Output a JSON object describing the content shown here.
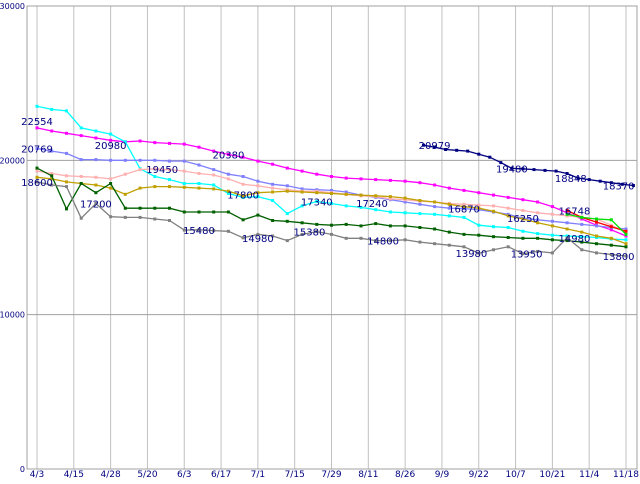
{
  "chart_data": {
    "type": "line",
    "title": "",
    "xlabel": "",
    "ylabel": "",
    "ylim": [
      0,
      30000
    ],
    "yticks": [
      0,
      10000,
      20000,
      30000
    ],
    "grid": true,
    "legend": "none",
    "x_tick_labels": [
      "4/3",
      "4/15",
      "4/28",
      "5/20",
      "6/3",
      "6/17",
      "7/1",
      "7/15",
      "7/29",
      "8/11",
      "8/26",
      "9/9",
      "9/22",
      "10/7",
      "10/21",
      "11/4",
      "11/18"
    ],
    "annotations": [
      {
        "text": "22554",
        "x": 0,
        "y": 22554,
        "color": "#000080"
      },
      {
        "text": "20769",
        "x": 0,
        "y": 20769,
        "color": "#000080"
      },
      {
        "text": "18600",
        "x": 0,
        "y": 18600,
        "color": "#000080"
      },
      {
        "text": "20980",
        "x": 2,
        "y": 20980,
        "color": "#000080"
      },
      {
        "text": "17200",
        "x": 1.6,
        "y": 17200,
        "color": "#000080"
      },
      {
        "text": "19450",
        "x": 3.4,
        "y": 19450,
        "color": "#000080"
      },
      {
        "text": "15480",
        "x": 4.4,
        "y": 15480,
        "color": "#000080"
      },
      {
        "text": "20380",
        "x": 5.2,
        "y": 20380,
        "color": "#000080"
      },
      {
        "text": "17800",
        "x": 5.6,
        "y": 17800,
        "color": "#000080"
      },
      {
        "text": "14980",
        "x": 6.0,
        "y": 14980,
        "color": "#000080"
      },
      {
        "text": "17340",
        "x": 7.6,
        "y": 17340,
        "color": "#000080"
      },
      {
        "text": "15380",
        "x": 7.4,
        "y": 15380,
        "color": "#000080"
      },
      {
        "text": "17240",
        "x": 9.1,
        "y": 17240,
        "color": "#000080"
      },
      {
        "text": "14800",
        "x": 9.4,
        "y": 14800,
        "color": "#000080"
      },
      {
        "text": "20979",
        "x": 10.8,
        "y": 20979,
        "color": "#000080"
      },
      {
        "text": "16870",
        "x": 11.6,
        "y": 16870,
        "color": "#000080"
      },
      {
        "text": "13980",
        "x": 11.8,
        "y": 13980,
        "color": "#000080"
      },
      {
        "text": "19480",
        "x": 12.9,
        "y": 19480,
        "color": "#000080"
      },
      {
        "text": "16250",
        "x": 13.2,
        "y": 16250,
        "color": "#000080"
      },
      {
        "text": "13950",
        "x": 13.3,
        "y": 13950,
        "color": "#000080"
      },
      {
        "text": "18848",
        "x": 14.5,
        "y": 18848,
        "color": "#000080"
      },
      {
        "text": "16748",
        "x": 14.6,
        "y": 16748,
        "color": "#000080"
      },
      {
        "text": "14980",
        "x": 14.6,
        "y": 14980,
        "color": "#000080"
      },
      {
        "text": "18370",
        "x": 15.8,
        "y": 18370,
        "color": "#000080"
      },
      {
        "text": "13800",
        "x": 15.8,
        "y": 13800,
        "color": "#000080"
      }
    ],
    "series": [
      {
        "color": "#000080",
        "x": [
          10.5,
          10.8,
          11.1,
          11.4,
          11.7,
          12.0,
          12.3,
          12.6,
          12.9,
          13.2,
          13.5,
          13.8,
          14.1,
          14.4,
          14.7,
          15.0,
          15.3,
          15.6,
          15.9,
          16.2
        ],
        "values": [
          20979,
          20850,
          20700,
          20650,
          20600,
          20400,
          20200,
          19850,
          19480,
          19450,
          19400,
          19350,
          19300,
          19150,
          18848,
          18750,
          18650,
          18550,
          18450,
          18370
        ]
      },
      {
        "color": "#ff00ff",
        "x": [
          0,
          0.4,
          0.8,
          1.2,
          1.6,
          2.0,
          2.4,
          2.8,
          3.2,
          3.6,
          4.0,
          4.4,
          4.8,
          5.2,
          5.6,
          6.0,
          6.4,
          6.8,
          7.2,
          7.6,
          8.0,
          8.4,
          8.8,
          9.2,
          9.6,
          10.0,
          10.4,
          10.8,
          11.2,
          11.6,
          12.0,
          12.4,
          12.8,
          13.2,
          13.6,
          14.0,
          14.4,
          14.8,
          15.2,
          15.6,
          16.0
        ],
        "values": [
          22100,
          21900,
          21750,
          21600,
          21450,
          21300,
          21200,
          21250,
          21150,
          21100,
          21050,
          20850,
          20600,
          20380,
          20200,
          19950,
          19750,
          19500,
          19300,
          19100,
          18950,
          18850,
          18800,
          18750,
          18700,
          18650,
          18550,
          18400,
          18200,
          18050,
          17900,
          17750,
          17600,
          17450,
          17300,
          17000,
          16600,
          16200,
          15800,
          15500,
          15100
        ]
      },
      {
        "color": "#00ffff",
        "x": [
          0,
          0.4,
          0.8,
          1.2,
          1.6,
          2.0,
          2.4,
          2.8,
          3.2,
          3.6,
          4.0,
          4.4,
          4.8,
          5.2,
          5.6,
          6.0,
          6.4,
          6.8,
          7.2,
          7.6,
          8.0,
          8.4,
          8.8,
          9.2,
          9.6,
          10.0,
          10.4,
          10.8,
          11.2,
          11.6,
          12.0,
          12.4,
          12.8,
          13.2,
          13.6,
          14.0,
          14.4,
          14.8,
          15.2,
          15.6,
          16.0
        ],
        "values": [
          23500,
          23300,
          23200,
          22100,
          21900,
          21700,
          21200,
          19450,
          18950,
          18750,
          18500,
          18500,
          18400,
          17850,
          17600,
          17650,
          17400,
          16550,
          17050,
          17340,
          17200,
          17050,
          16950,
          16800,
          16650,
          16600,
          16550,
          16500,
          16400,
          16300,
          15800,
          15700,
          15650,
          15400,
          15250,
          15150,
          15100,
          15050,
          15000,
          14900,
          14850
        ]
      },
      {
        "color": "#8080ff",
        "x": [
          0,
          0.4,
          0.8,
          1.2,
          1.6,
          2.0,
          2.4,
          2.8,
          3.2,
          3.6,
          4.0,
          4.4,
          4.8,
          5.2,
          5.6,
          6.0,
          6.4,
          6.8,
          7.2,
          7.6,
          8.0,
          8.4,
          8.8,
          9.2,
          9.6,
          10.0,
          10.4,
          10.8,
          11.2,
          11.6,
          12.0,
          12.4,
          12.8,
          13.2,
          13.6,
          14.0,
          14.4,
          14.8,
          15.2,
          15.6,
          16.0
        ],
        "values": [
          20769,
          20600,
          20450,
          20050,
          20050,
          20000,
          20000,
          20000,
          20000,
          19950,
          19950,
          19700,
          19400,
          19100,
          18950,
          18650,
          18450,
          18350,
          18150,
          18100,
          18050,
          17950,
          17750,
          17600,
          17450,
          17300,
          17150,
          17000,
          16900,
          16870,
          16800,
          16650,
          16500,
          16250,
          16150,
          16050,
          15950,
          15850,
          15750,
          15650,
          15550
        ]
      },
      {
        "color": "#ffb0b0",
        "x": [
          0,
          0.4,
          0.8,
          1.2,
          1.6,
          2.0,
          2.4,
          2.8,
          3.2,
          3.6,
          4.0,
          4.4,
          4.8,
          5.2,
          5.6,
          6.0,
          6.4,
          6.8,
          7.2,
          7.6,
          8.0,
          8.4,
          8.8,
          9.2,
          9.6,
          10.0,
          10.4,
          10.8,
          11.2,
          11.6,
          12.0,
          12.4,
          12.8,
          13.2,
          13.6,
          14.0,
          14.4,
          14.8,
          15.2,
          15.6,
          16.0
        ],
        "values": [
          19300,
          19150,
          19000,
          18950,
          18900,
          18800,
          19100,
          19400,
          19450,
          19400,
          19300,
          19150,
          19050,
          18800,
          18450,
          18350,
          18200,
          18100,
          18000,
          18000,
          17900,
          17800,
          17700,
          17650,
          17500,
          17450,
          17350,
          17300,
          17200,
          17150,
          17100,
          17050,
          16900,
          16750,
          16600,
          16500,
          16400,
          16300,
          16200,
          15800,
          15350
        ]
      },
      {
        "color": "#c0a000",
        "x": [
          0,
          0.4,
          0.8,
          1.2,
          1.6,
          2.0,
          2.4,
          2.8,
          3.2,
          3.6,
          4.0,
          4.4,
          4.8,
          5.2,
          5.6,
          6.0,
          6.4,
          6.8,
          7.2,
          7.6,
          8.0,
          8.4,
          8.8,
          9.2,
          9.6,
          10.0,
          10.4,
          10.8,
          11.2,
          11.6,
          12.0,
          12.4,
          12.8,
          13.2,
          13.6,
          14.0,
          14.4,
          14.8,
          15.2,
          15.6,
          16.0
        ],
        "values": [
          18900,
          18800,
          18600,
          18500,
          18400,
          18200,
          17800,
          18200,
          18300,
          18300,
          18250,
          18200,
          18150,
          18000,
          17700,
          17900,
          17950,
          18000,
          17950,
          17900,
          17850,
          17800,
          17750,
          17700,
          17650,
          17550,
          17400,
          17300,
          17150,
          17000,
          16900,
          16700,
          16400,
          16200,
          15950,
          15750,
          15550,
          15350,
          15100,
          14950,
          14600
        ]
      },
      {
        "color": "#006000",
        "x": [
          0,
          0.4,
          0.8,
          1.2,
          1.6,
          2.0,
          2.4,
          2.8,
          3.2,
          3.6,
          4.0,
          4.4,
          4.8,
          5.2,
          5.6,
          6.0,
          6.4,
          6.8,
          7.2,
          7.6,
          8.0,
          8.4,
          8.8,
          9.2,
          9.6,
          10.0,
          10.4,
          10.8,
          11.2,
          11.6,
          12.0,
          12.4,
          12.8,
          13.2,
          13.6,
          14.0,
          14.4,
          14.8,
          15.2,
          15.6,
          16.0
        ],
        "values": [
          19500,
          19000,
          16850,
          18500,
          17900,
          18500,
          16900,
          16900,
          16900,
          16900,
          16650,
          16650,
          16650,
          16650,
          16150,
          16450,
          16100,
          16050,
          15950,
          15850,
          15800,
          15850,
          15750,
          15900,
          15750,
          15750,
          15650,
          15550,
          15350,
          15200,
          15150,
          15050,
          15000,
          14950,
          14950,
          14850,
          14800,
          14700,
          14600,
          14500,
          14400
        ]
      },
      {
        "color": "#808080",
        "x": [
          0,
          0.4,
          0.8,
          1.2,
          1.6,
          2.0,
          2.4,
          2.8,
          3.2,
          3.6,
          4.0,
          4.4,
          4.8,
          5.2,
          5.6,
          6.0,
          6.4,
          6.8,
          7.2,
          7.6,
          8.0,
          8.4,
          8.8,
          9.2,
          9.6,
          10.0,
          10.4,
          10.8,
          11.2,
          11.6,
          12.0,
          12.4,
          12.8,
          13.2,
          13.6,
          14.0,
          14.4,
          14.8,
          15.2,
          15.6,
          16.0
        ],
        "values": [
          18600,
          18400,
          18300,
          16250,
          17200,
          16350,
          16300,
          16300,
          16200,
          16100,
          15480,
          15500,
          15450,
          15400,
          14980,
          15200,
          15100,
          14800,
          15200,
          15380,
          15200,
          14950,
          14950,
          14800,
          14800,
          14850,
          14700,
          14600,
          14500,
          14400,
          13980,
          14200,
          14400,
          13950,
          14100,
          14000,
          14980,
          14200,
          14000,
          13900,
          13800
        ]
      },
      {
        "color": "#ff0000",
        "x": [
          14.4,
          14.8,
          15.2,
          15.6,
          16.0
        ],
        "values": [
          16748,
          16300,
          16000,
          15700,
          15400
        ]
      },
      {
        "color": "#00e000",
        "x": [
          14.4,
          14.8,
          15.2,
          15.6,
          16.0
        ],
        "values": [
          16500,
          16300,
          16200,
          16150,
          15200
        ]
      }
    ]
  }
}
